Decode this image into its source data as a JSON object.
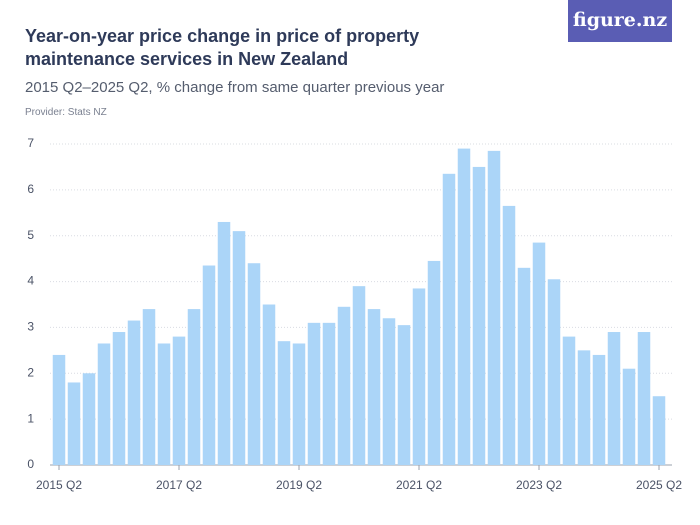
{
  "brand": "figure.nz",
  "chart_data": {
    "type": "bar",
    "title": "Year-on-year price change in price of property maintenance services in New Zealand",
    "subtitle": "2015 Q2–2025 Q2, % change from same quarter previous year",
    "provider": "Provider: Stats NZ",
    "categories": [
      "2015 Q2",
      null,
      null,
      null,
      null,
      null,
      null,
      null,
      "2017 Q2",
      null,
      null,
      null,
      null,
      null,
      null,
      null,
      "2019 Q2",
      null,
      null,
      null,
      null,
      null,
      null,
      null,
      "2021 Q2",
      null,
      null,
      null,
      null,
      null,
      null,
      null,
      "2023 Q2",
      null,
      null,
      null,
      null,
      null,
      null,
      null,
      "2025 Q2"
    ],
    "values": [
      2.4,
      1.8,
      2.0,
      2.65,
      2.9,
      3.15,
      3.4,
      2.65,
      2.8,
      3.4,
      4.35,
      5.3,
      5.1,
      4.4,
      3.5,
      2.7,
      2.65,
      3.1,
      3.1,
      3.45,
      3.9,
      3.4,
      3.2,
      3.05,
      3.85,
      4.45,
      6.35,
      6.9,
      6.5,
      6.85,
      5.65,
      4.3,
      4.85,
      4.05,
      2.8,
      2.5,
      2.4,
      2.9,
      2.1,
      2.9,
      1.5
    ],
    "color": "#abd5f8",
    "ylim": [
      0,
      7
    ],
    "yticks": [
      0,
      1,
      2,
      3,
      4,
      5,
      6,
      7
    ],
    "grid": true
  }
}
